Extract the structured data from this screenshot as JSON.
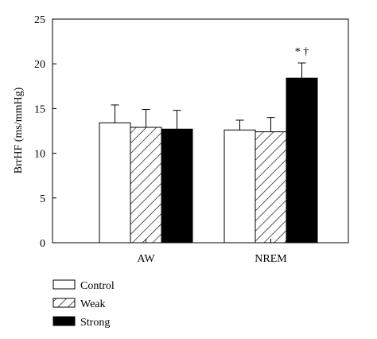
{
  "chart_data": {
    "type": "bar",
    "categories": [
      "AW",
      "NREM"
    ],
    "ylabel": "BrrHF (ms/mmHg)",
    "ylim": [
      0,
      25
    ],
    "yticks": [
      0,
      5,
      10,
      15,
      20,
      25
    ],
    "grid": false,
    "legend_position": "bottom-left",
    "series": [
      {
        "name": "Control",
        "fill": "white",
        "values": [
          13.4,
          12.6
        ],
        "errors": [
          2.0,
          1.1
        ]
      },
      {
        "name": "Weak",
        "fill": "hatch",
        "values": [
          12.9,
          12.4
        ],
        "errors": [
          2.0,
          1.6
        ]
      },
      {
        "name": "Strong",
        "fill": "black",
        "values": [
          12.7,
          18.4
        ],
        "errors": [
          2.1,
          1.7
        ]
      }
    ],
    "annotations": [
      {
        "category": "NREM",
        "series": "Strong",
        "text": "* †"
      }
    ]
  }
}
